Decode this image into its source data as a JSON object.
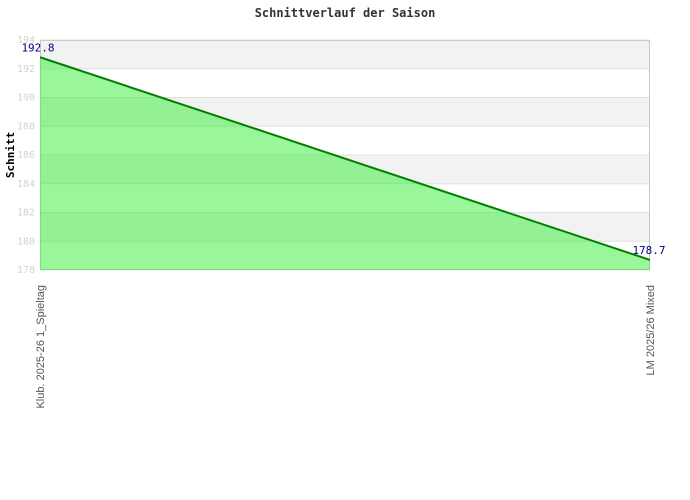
{
  "title": "Schnittverlauf der Saison",
  "chart_data": {
    "type": "area",
    "title": "Schnittverlauf der Saison",
    "xlabel": "",
    "ylabel": "Schnitt",
    "categories": [
      "Klub. 2025-26 1_Spieltag",
      "LM 2025/26 Mixed"
    ],
    "values": [
      192.8,
      178.7
    ],
    "point_labels": [
      "192.8",
      "178.7"
    ],
    "ylim": [
      178,
      194
    ],
    "yticks": [
      194,
      192,
      190,
      188,
      186,
      184,
      182,
      180,
      178
    ],
    "grid": true,
    "legend_position": "none",
    "band_fill": "alternating"
  },
  "colors": {
    "title": "#333333",
    "line": "#008000",
    "area_fill": "#33ee33",
    "band_gray": "#f2f2f2",
    "band_white": "#ffffff",
    "gridline": "#e0e0e0",
    "plot_border": "#c8c8c8",
    "ytick_label": "#d2d2d2",
    "xtick_label": "#555555",
    "data_label": "#000080",
    "ylabel_color": "#000000"
  }
}
